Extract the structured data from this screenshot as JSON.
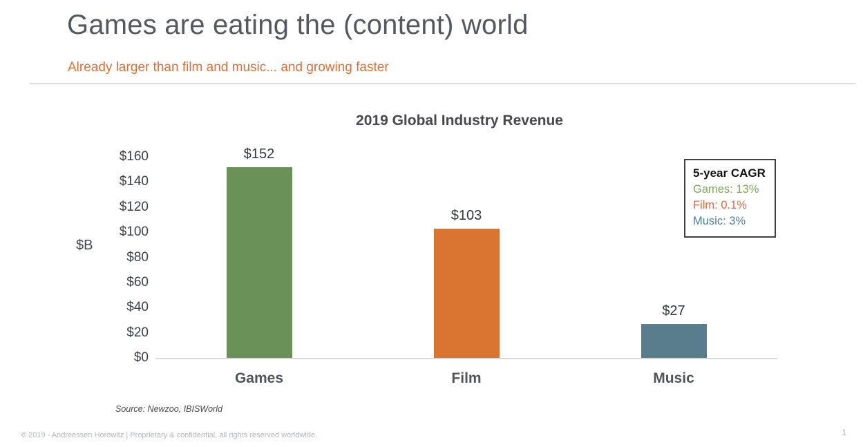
{
  "slide": {
    "title": "Games are eating the (content) world",
    "subtitle": "Already larger than film and music... and growing faster",
    "source_note": "Source: Newzoo, IBISWorld",
    "footer": "© 2019 - Andreessen Horowitz | Proprietary & confidential, all rights reserved worldwide.",
    "page_number": "1"
  },
  "colors": {
    "title_gray": "#55585c",
    "subtitle_orange": "#df6e36",
    "axis_line_gray": "#d9d9d9"
  },
  "chart_data": {
    "type": "bar",
    "title": "2019 Global Industry Revenue",
    "xlabel": "",
    "ylabel": "$B",
    "categories": [
      "Games",
      "Film",
      "Music"
    ],
    "values": [
      152,
      103,
      27
    ],
    "value_labels": [
      "$152",
      "$103",
      "$27"
    ],
    "bar_colors": [
      "#6a9157",
      "#d97530",
      "#597d8d"
    ],
    "ylim": [
      0,
      160
    ],
    "ytick_step": 20,
    "ytick_labels": [
      "$0",
      "$20",
      "$40",
      "$60",
      "$80",
      "$100",
      "$120",
      "$140",
      "$160"
    ],
    "grid": false,
    "legend": {
      "position": "upper right",
      "title": "5-year CAGR",
      "entries": [
        {
          "label": "Games: 13%",
          "color": "#7fa863"
        },
        {
          "label": "Film: 0.1%",
          "color": "#e16a41"
        },
        {
          "label": "Music: 3%",
          "color": "#4f7f98"
        }
      ]
    }
  }
}
